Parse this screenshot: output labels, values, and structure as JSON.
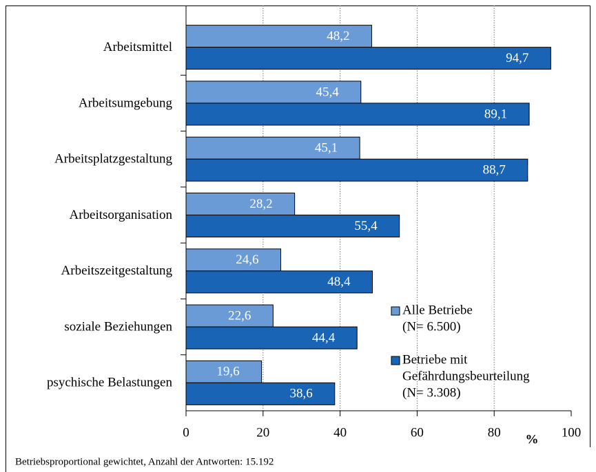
{
  "chart_data": {
    "type": "barh",
    "categories": [
      "Arbeitsmittel",
      "Arbeitsumgebung",
      "Arbeitsplatzgestaltung",
      "Arbeitsorganisation",
      "Arbeitszeitgestaltung",
      "soziale Beziehungen",
      "psychische Belastungen"
    ],
    "series": [
      {
        "name": [
          "Alle Betriebe",
          "(N= 6.500)"
        ],
        "color": "#6a9bd6",
        "values": [
          48.2,
          45.4,
          45.1,
          28.2,
          24.6,
          22.6,
          19.6
        ],
        "value_labels": [
          "48,2",
          "45,4",
          "45,1",
          "28,2",
          "24,6",
          "22,6",
          "19,6"
        ]
      },
      {
        "name": [
          "Betriebe mit",
          "Gefährdungsbeurteilung",
          "(N= 3.308)"
        ],
        "color": "#1a64b5",
        "values": [
          94.7,
          89.1,
          88.7,
          55.4,
          48.4,
          44.4,
          38.6
        ],
        "value_labels": [
          "94,7",
          "89,1",
          "88,7",
          "55,4",
          "48,4",
          "44,4",
          "38,6"
        ]
      }
    ],
    "xlim": [
      0,
      100
    ],
    "xticks": [
      0,
      20,
      40,
      60,
      80,
      100
    ],
    "grid": true,
    "xlabel": "%",
    "note": "Betriebsproportional gewichtet, Anzahl der Antworten: 15.192"
  }
}
